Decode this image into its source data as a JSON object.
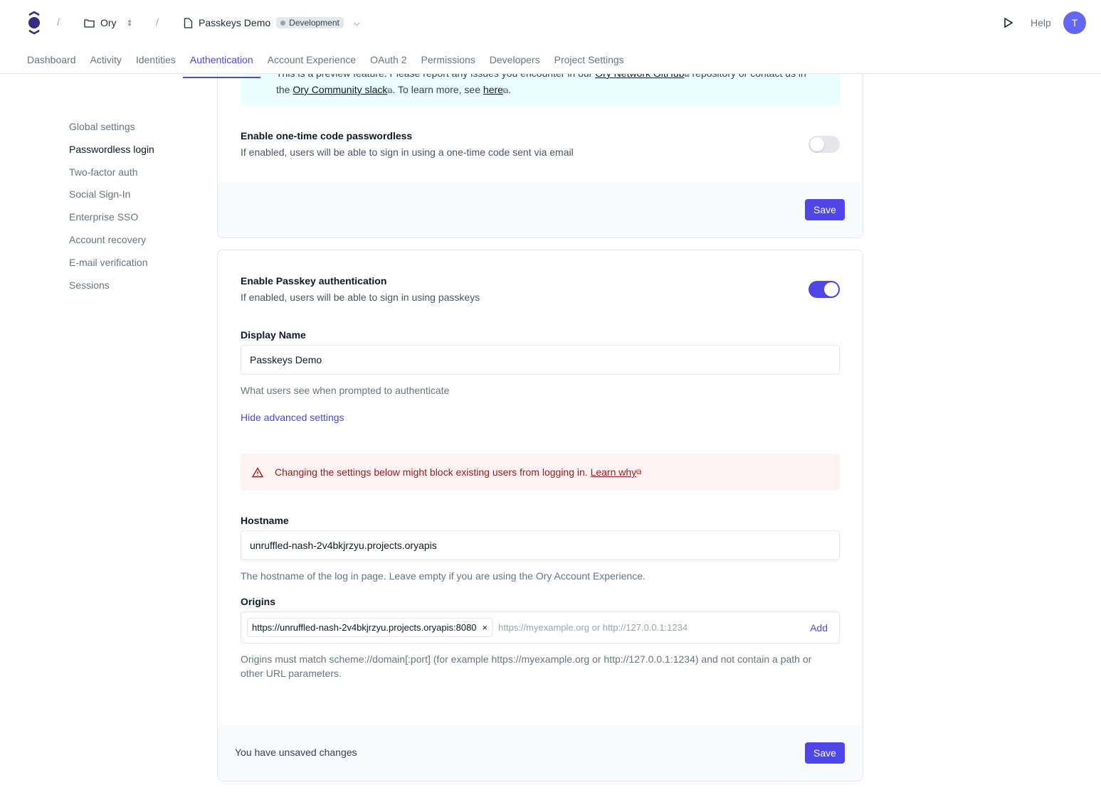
{
  "header": {
    "org": "Ory",
    "project": "Passkeys Demo",
    "env": "Development",
    "help": "Help",
    "avatar": "T"
  },
  "tabs": [
    {
      "label": "Dashboard"
    },
    {
      "label": "Activity"
    },
    {
      "label": "Identities"
    },
    {
      "label": "Authentication",
      "active": true
    },
    {
      "label": "Account Experience"
    },
    {
      "label": "OAuth 2"
    },
    {
      "label": "Permissions"
    },
    {
      "label": "Developers"
    },
    {
      "label": "Project Settings"
    }
  ],
  "sidebar": [
    "Global settings",
    "Passwordless login",
    "Two-factor auth",
    "Social Sign-In",
    "Enterprise SSO",
    "Account recovery",
    "E-mail verification",
    "Sessions"
  ],
  "sidebar_active": "Passwordless login",
  "info": {
    "line1_pre": "This is a preview feature. Please report any issues you encounter in our ",
    "github": "Ory Network GitHub",
    "line1_post": " repository or contact us in",
    "line2_pre": "the ",
    "slack": "Ory Community slack",
    "line2_mid": ". To learn more, see ",
    "here": "here",
    "line2_post": "."
  },
  "otp": {
    "title": "Enable one-time code passwordless",
    "desc": "If enabled, users will be able to sign in using a one-time code sent via email",
    "enabled": false,
    "save": "Save"
  },
  "passkey": {
    "title": "Enable Passkey authentication",
    "desc": "If enabled, users will be able to sign in using passkeys",
    "enabled": true,
    "display_label": "Display Name",
    "display_value": "Passkeys Demo",
    "display_help": "What users see when prompted to authenticate",
    "advanced_link": "Hide advanced settings",
    "warning": "Changing the settings below might block existing users from logging in.",
    "learn": "Learn why",
    "hostname_label": "Hostname",
    "hostname_value": "unruffled-nash-2v4bkjrzyu.projects.oryapis",
    "hostname_help": "The hostname of the log in page. Leave empty if you are using the Ory Account Experience.",
    "origins_label": "Origins",
    "origin_tag": "https://unruffled-nash-2v4bkjrzyu.projects.oryapis:8080",
    "origin_placeholder": "https://myexample.org or http://127.0.0.1:1234",
    "add": "Add",
    "origins_help": "Origins must match scheme://domain[:port] (for example https://myexample.org or http://127.0.0.1:1234) and not contain a path or other URL parameters.",
    "unsaved": "You have unsaved changes",
    "save": "Save"
  },
  "colors": {
    "accent": "#4f46e5",
    "info_bg": "#ecfeff",
    "warn_bg": "#fef2f2",
    "warn_text": "#991b1b"
  }
}
